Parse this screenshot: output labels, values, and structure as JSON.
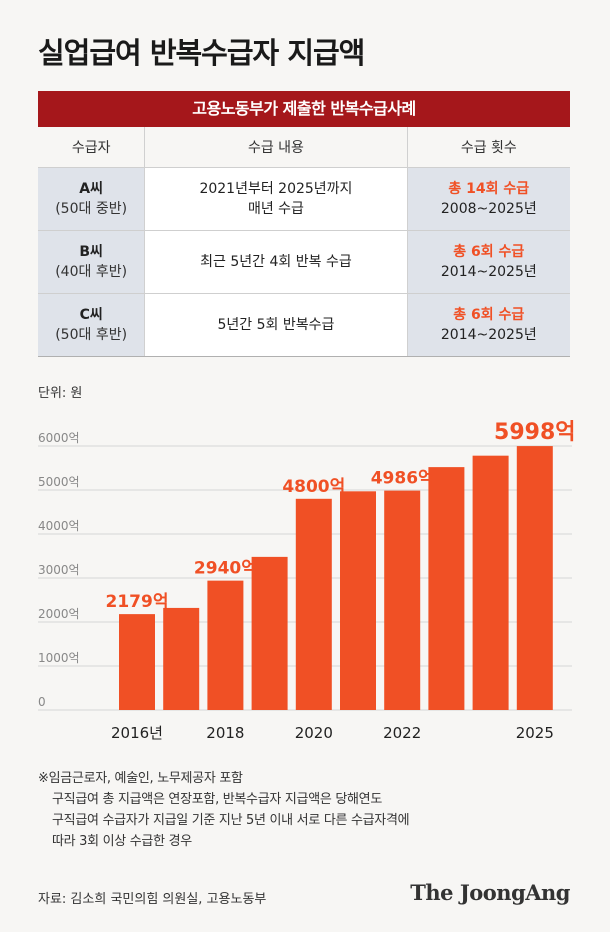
{
  "title": "실업급여 반복수급자 지급액",
  "table": {
    "heading": "고용노동부가 제출한 반복수급사례",
    "columns": [
      "수급자",
      "수급 내용",
      "수급 횟수"
    ],
    "rows": [
      {
        "person": "A씨",
        "age": "(50대 중반)",
        "content_line1": "2021년부터 2025년까지",
        "content_line2": "매년 수급",
        "count": "총 14회 수급",
        "period": "2008~2025년"
      },
      {
        "person": "B씨",
        "age": "(40대 후반)",
        "content_line1": "최근 5년간 4회 반복 수급",
        "content_line2": "",
        "count": "총 6회 수급",
        "period": "2014~2025년"
      },
      {
        "person": "C씨",
        "age": "(50대 후반)",
        "content_line1": "5년간 5회 반복수급",
        "content_line2": "",
        "count": "총 6회 수급",
        "period": "2014~2025년"
      }
    ]
  },
  "unit": "단위: 원",
  "chart_data": {
    "type": "bar",
    "x": [
      2016,
      2017,
      2018,
      2019,
      2020,
      2021,
      2022,
      2023,
      2024,
      2025
    ],
    "values": [
      2179,
      2320,
      2940,
      3480,
      4800,
      4970,
      4986,
      5520,
      5780,
      5998
    ],
    "value_labels": [
      {
        "index": 0,
        "text": "2179억"
      },
      {
        "index": 2,
        "text": "2940억"
      },
      {
        "index": 4,
        "text": "4800억"
      },
      {
        "index": 6,
        "text": "4986억"
      },
      {
        "index": 9,
        "text": "5998억"
      }
    ],
    "x_tick_labels": [
      {
        "index": 0,
        "text": "2016년"
      },
      {
        "index": 2,
        "text": "2018"
      },
      {
        "index": 4,
        "text": "2020"
      },
      {
        "index": 6,
        "text": "2022"
      },
      {
        "index": 9,
        "text": "2025"
      }
    ],
    "y_ticks": [
      {
        "value": 0,
        "text": "0"
      },
      {
        "value": 1000,
        "text": "1000억"
      },
      {
        "value": 2000,
        "text": "2000억"
      },
      {
        "value": 3000,
        "text": "3000억"
      },
      {
        "value": 4000,
        "text": "4000억"
      },
      {
        "value": 5000,
        "text": "5000억"
      },
      {
        "value": 6000,
        "text": "6000억"
      }
    ],
    "ylim": [
      0,
      6000
    ],
    "grid": true,
    "bar_color": "#f05025"
  },
  "notes": {
    "line1": "※임금근로자, 예술인, 노무제공자 포함",
    "line2": "구직급여 총 지급액은 연장포함, 반복수급자 지급액은 당해연도",
    "line3": "구직급여 수급자가 지급일 기준 지난 5년 이내 서로 다른 수급자격에",
    "line4": "따라 3회 이상 수급한 경우"
  },
  "source": "자료: 김소희 국민의힘 의원실, 고용노동부",
  "brand": "The JoongAng"
}
